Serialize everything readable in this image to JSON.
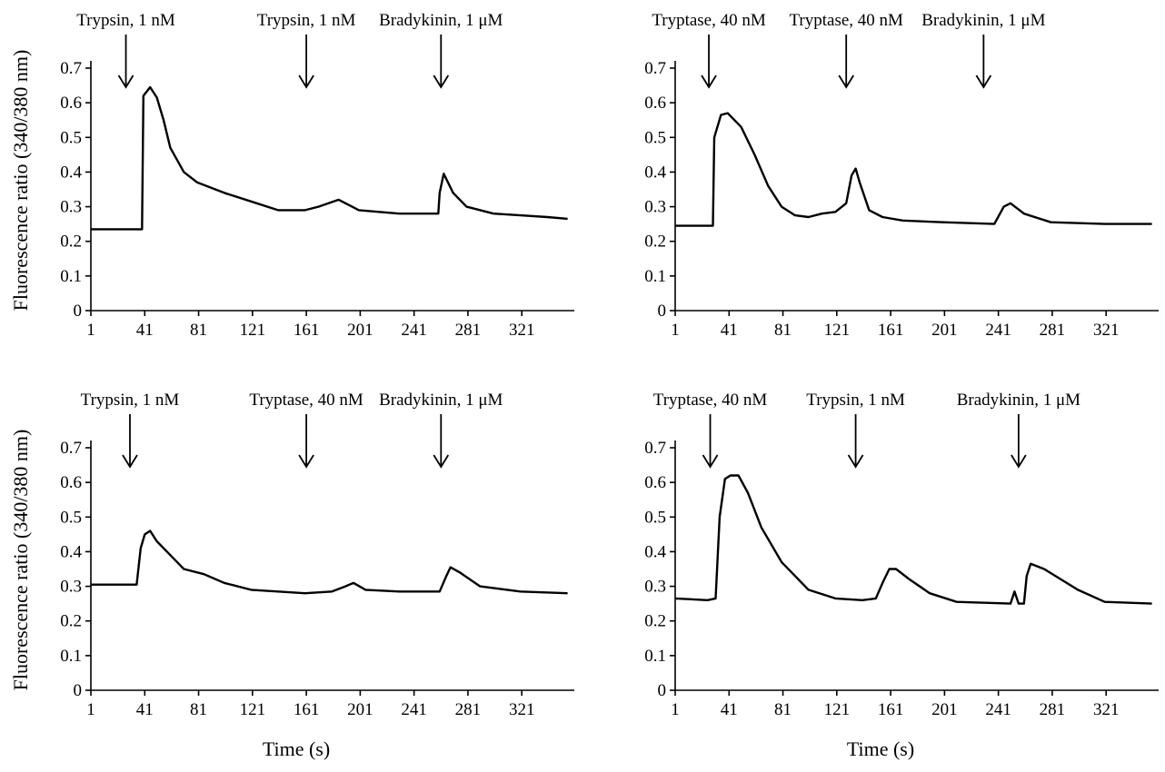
{
  "chart_data": [
    {
      "type": "line",
      "xlabel": "",
      "ylabel": "Fluorescence ratio (340/380 nm)",
      "xlim": [
        1,
        360
      ],
      "ylim": [
        0,
        0.7
      ],
      "xticks": [
        "1",
        "41",
        "81",
        "121",
        "161",
        "201",
        "241",
        "281",
        "321"
      ],
      "yticks": [
        "0",
        "0.1",
        "0.2",
        "0.3",
        "0.4",
        "0.5",
        "0.6",
        "0.7"
      ],
      "annotations": [
        {
          "label": "Trypsin, 1 nM",
          "x": 27
        },
        {
          "label": "Trypsin, 1 nM",
          "x": 161
        },
        {
          "label": "Bradykinin, 1 μM",
          "x": 261
        }
      ],
      "x": [
        1,
        20,
        39,
        40,
        45,
        50,
        55,
        60,
        70,
        80,
        100,
        120,
        140,
        160,
        170,
        185,
        200,
        230,
        259,
        260,
        263,
        270,
        280,
        300,
        320,
        340,
        355
      ],
      "values": [
        0.235,
        0.235,
        0.235,
        0.62,
        0.645,
        0.615,
        0.55,
        0.47,
        0.4,
        0.37,
        0.34,
        0.315,
        0.29,
        0.29,
        0.3,
        0.32,
        0.29,
        0.28,
        0.28,
        0.34,
        0.395,
        0.34,
        0.3,
        0.28,
        0.275,
        0.27,
        0.265
      ]
    },
    {
      "type": "line",
      "xlabel": "",
      "ylabel": "",
      "xlim": [
        1,
        360
      ],
      "ylim": [
        0,
        0.7
      ],
      "xticks": [
        "1",
        "41",
        "81",
        "121",
        "161",
        "201",
        "241",
        "281",
        "321"
      ],
      "yticks": [
        "0",
        "0.1",
        "0.2",
        "0.3",
        "0.4",
        "0.5",
        "0.6",
        "0.7"
      ],
      "annotations": [
        {
          "label": "Tryptase, 40 nM",
          "x": 26
        },
        {
          "label": "Tryptase, 40 nM",
          "x": 128
        },
        {
          "label": "Bradykinin, 1 μM",
          "x": 230
        }
      ],
      "x": [
        1,
        20,
        29,
        30,
        35,
        40,
        50,
        60,
        70,
        80,
        90,
        100,
        110,
        120,
        128,
        132,
        135,
        138,
        145,
        155,
        170,
        200,
        238,
        245,
        250,
        260,
        280,
        320,
        355
      ],
      "values": [
        0.245,
        0.245,
        0.245,
        0.5,
        0.565,
        0.57,
        0.53,
        0.45,
        0.36,
        0.3,
        0.275,
        0.27,
        0.28,
        0.285,
        0.31,
        0.39,
        0.41,
        0.37,
        0.29,
        0.27,
        0.26,
        0.255,
        0.25,
        0.3,
        0.31,
        0.28,
        0.255,
        0.25,
        0.25
      ]
    },
    {
      "type": "line",
      "xlabel": "Time (s)",
      "ylabel": "Fluorescence ratio (340/380 nm)",
      "xlim": [
        1,
        360
      ],
      "ylim": [
        0,
        0.7
      ],
      "xticks": [
        "1",
        "41",
        "81",
        "121",
        "161",
        "201",
        "241",
        "281",
        "321"
      ],
      "yticks": [
        "0",
        "0.1",
        "0.2",
        "0.3",
        "0.4",
        "0.5",
        "0.6",
        "0.7"
      ],
      "annotations": [
        {
          "label": "Trypsin, 1 nM",
          "x": 30
        },
        {
          "label": "Tryptase, 40 nM",
          "x": 161
        },
        {
          "label": "Bradykinin, 1 μM",
          "x": 261
        }
      ],
      "x": [
        1,
        20,
        35,
        38,
        41,
        45,
        50,
        60,
        70,
        85,
        100,
        120,
        140,
        160,
        180,
        190,
        196,
        205,
        230,
        260,
        265,
        268,
        275,
        290,
        320,
        355
      ],
      "values": [
        0.305,
        0.305,
        0.305,
        0.41,
        0.45,
        0.46,
        0.43,
        0.39,
        0.35,
        0.335,
        0.31,
        0.29,
        0.285,
        0.28,
        0.285,
        0.3,
        0.31,
        0.29,
        0.285,
        0.285,
        0.33,
        0.355,
        0.34,
        0.3,
        0.285,
        0.28
      ]
    },
    {
      "type": "line",
      "xlabel": "Time (s)",
      "ylabel": "",
      "xlim": [
        1,
        360
      ],
      "ylim": [
        0,
        0.7
      ],
      "xticks": [
        "1",
        "41",
        "81",
        "121",
        "161",
        "201",
        "241",
        "281",
        "321"
      ],
      "yticks": [
        "0",
        "0.1",
        "0.2",
        "0.3",
        "0.4",
        "0.5",
        "0.6",
        "0.7"
      ],
      "annotations": [
        {
          "label": "Tryptase, 40 nM",
          "x": 27
        },
        {
          "label": "Trypsin, 1 nM",
          "x": 135
        },
        {
          "label": "Bradykinin, 1 μM",
          "x": 256
        }
      ],
      "x": [
        1,
        25,
        31,
        34,
        38,
        42,
        48,
        55,
        65,
        80,
        100,
        120,
        140,
        150,
        155,
        160,
        165,
        175,
        190,
        210,
        250,
        253,
        256,
        260,
        262,
        265,
        275,
        300,
        320,
        355
      ],
      "values": [
        0.265,
        0.26,
        0.265,
        0.5,
        0.61,
        0.62,
        0.62,
        0.57,
        0.47,
        0.37,
        0.29,
        0.265,
        0.26,
        0.265,
        0.31,
        0.35,
        0.35,
        0.32,
        0.28,
        0.255,
        0.25,
        0.285,
        0.25,
        0.25,
        0.33,
        0.365,
        0.35,
        0.29,
        0.255,
        0.25
      ]
    }
  ]
}
